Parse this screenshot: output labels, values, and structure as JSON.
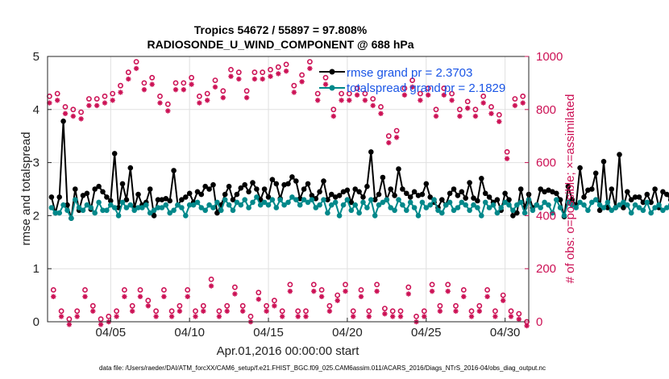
{
  "chart_data": {
    "type": "line",
    "title_line1": "Tropics 54672 / 55897 = 97.808%",
    "title_line2": "RADIOSONDE_U_WIND_COMPONENT @ 688 hPa",
    "xlabel": "Apr.01,2016 00:00:00 start",
    "ylabel_left": "rmse and totalspread",
    "ylabel_right": "# of obs: o=possible; ×=assimilated",
    "footer": "data file: /Users/raeder/DAI/ATM_forcXX/CAM6_setup/f.e21.FHIST_BGC.f09_025.CAM6assim.011/ACARS_2016/Diags_NTrS_2016-04/obs_diag_output.nc",
    "x_range_days": [
      1,
      31.5
    ],
    "xticks": [
      {
        "day": 5,
        "label": "04/05"
      },
      {
        "day": 10,
        "label": "04/10"
      },
      {
        "day": 15,
        "label": "04/15"
      },
      {
        "day": 20,
        "label": "04/20"
      },
      {
        "day": 25,
        "label": "04/25"
      },
      {
        "day": 30,
        "label": "04/30"
      }
    ],
    "ylim_left": [
      0,
      5
    ],
    "yticks_left": [
      "0",
      "1",
      "2",
      "3",
      "4",
      "5"
    ],
    "ylim_right": [
      0,
      1000
    ],
    "yticks_right": [
      "0",
      "200",
      "400",
      "600",
      "800",
      "1000"
    ],
    "x_start_day": 1.25,
    "x_step_days": 0.25,
    "series": [
      {
        "name": "rmse",
        "legend": "rmse grand pr = 2.3703",
        "color": "#000000",
        "axis": "left",
        "values": [
          2.35,
          2.05,
          2.35,
          3.78,
          2.2,
          1.95,
          2.5,
          2.1,
          2.38,
          2.42,
          2.12,
          2.5,
          2.55,
          2.45,
          2.35,
          2.28,
          3.17,
          2.15,
          2.6,
          2.3,
          2.9,
          2.15,
          2.4,
          2.2,
          2.25,
          2.5,
          2.0,
          2.3,
          2.3,
          2.32,
          2.28,
          2.85,
          2.2,
          2.3,
          2.35,
          2.42,
          2.25,
          2.45,
          2.4,
          2.55,
          2.5,
          2.58,
          2.05,
          2.2,
          2.4,
          2.55,
          2.3,
          2.4,
          2.52,
          2.58,
          2.45,
          2.62,
          2.5,
          2.3,
          2.5,
          2.35,
          2.68,
          2.6,
          2.32,
          2.58,
          2.6,
          2.73,
          2.65,
          2.32,
          2.5,
          2.6,
          2.38,
          2.32,
          2.45,
          2.65,
          2.3,
          2.4,
          2.35,
          2.38,
          2.45,
          2.48,
          2.25,
          2.5,
          2.45,
          2.35,
          2.55,
          3.2,
          2.3,
          2.4,
          2.72,
          2.3,
          2.5,
          2.38,
          2.88,
          2.5,
          2.42,
          2.35,
          2.45,
          2.38,
          2.4,
          2.6,
          2.35,
          2.25,
          2.15,
          2.3,
          2.2,
          2.42,
          2.5,
          2.38,
          2.45,
          2.33,
          2.62,
          2.33,
          2.28,
          2.7,
          2.42,
          2.35,
          2.25,
          2.3,
          2.1,
          2.42,
          2.3,
          2.0,
          2.05,
          2.5,
          2.15,
          2.4,
          2.15,
          2.2,
          2.5,
          2.45,
          2.48,
          2.45,
          2.42,
          2.3,
          1.98,
          2.55,
          2.3,
          2.2,
          2.9,
          2.35,
          2.48,
          2.5,
          2.8,
          2.1,
          3.02,
          2.15,
          2.5,
          2.15,
          3.15,
          2.15,
          2.45,
          2.3,
          2.35,
          2.35,
          2.25,
          2.4,
          2.25,
          2.5,
          2.15,
          2.45,
          2.4,
          2.3,
          2.45,
          2.4,
          3.05
        ]
      },
      {
        "name": "totalspread",
        "legend": "totalspread grand pr = 2.1829",
        "color": "#00888a",
        "axis": "left",
        "values": [
          2.15,
          2.05,
          2.05,
          2.2,
          2.1,
          1.95,
          2.3,
          2.15,
          2.1,
          2.2,
          2.15,
          2.05,
          2.25,
          2.1,
          2.1,
          2.2,
          2.15,
          2.0,
          2.25,
          2.15,
          2.2,
          2.1,
          2.15,
          2.15,
          2.2,
          2.05,
          2.1,
          2.15,
          2.15,
          2.2,
          2.05,
          2.1,
          2.2,
          2.15,
          2.0,
          2.2,
          2.2,
          2.25,
          2.15,
          2.1,
          2.2,
          2.15,
          2.25,
          2.1,
          2.3,
          2.2,
          2.1,
          2.25,
          2.2,
          2.3,
          2.15,
          2.25,
          2.35,
          2.2,
          2.25,
          2.2,
          2.3,
          2.15,
          2.3,
          2.2,
          2.25,
          2.35,
          2.3,
          2.2,
          2.3,
          2.25,
          2.3,
          2.15,
          2.2,
          2.3,
          2.05,
          2.2,
          2.25,
          2.0,
          2.2,
          2.3,
          2.1,
          2.2,
          2.05,
          2.25,
          2.15,
          2.3,
          2.0,
          2.2,
          2.25,
          2.3,
          2.15,
          2.1,
          2.3,
          2.2,
          2.1,
          2.25,
          2.15,
          2.0,
          2.25,
          2.15,
          2.2,
          2.3,
          2.1,
          2.05,
          2.2,
          2.25,
          2.1,
          2.15,
          2.25,
          2.2,
          2.1,
          2.2,
          2.15,
          2.0,
          2.25,
          2.15,
          2.2,
          2.05,
          2.15,
          2.25,
          2.2,
          2.1,
          2.2,
          2.25,
          2.05,
          2.3,
          2.1,
          2.2,
          2.15,
          2.25,
          2.2,
          2.05,
          2.3,
          2.15,
          2.0,
          2.25,
          2.2,
          2.15,
          2.25,
          2.2,
          2.1,
          2.25,
          2.3,
          2.2,
          2.15,
          2.25,
          2.1,
          2.15,
          2.2,
          2.25,
          2.2,
          2.05,
          2.2,
          2.15,
          2.1,
          2.25,
          2.05,
          2.15,
          2.2,
          2.1,
          2.15,
          2.2,
          2.1
        ]
      }
    ],
    "obs_counts": {
      "axis": "right",
      "color": "#cc1155",
      "times": [
        1.125,
        1.375,
        1.625,
        1.875,
        2.125,
        2.375,
        2.625,
        2.875,
        3.125,
        3.375,
        3.625,
        3.875,
        4.125,
        4.375,
        4.625,
        4.875,
        5.125,
        5.375,
        5.625,
        5.875,
        6.125,
        6.375,
        6.625,
        6.875,
        7.125,
        7.375,
        7.625,
        7.875,
        8.125,
        8.375,
        8.625,
        8.875,
        9.125,
        9.375,
        9.625,
        9.875,
        10.125,
        10.375,
        10.625,
        10.875,
        11.125,
        11.375,
        11.625,
        11.875,
        12.125,
        12.375,
        12.625,
        12.875,
        13.125,
        13.375,
        13.625,
        13.875,
        14.125,
        14.375,
        14.625,
        14.875,
        15.125,
        15.375,
        15.625,
        15.875,
        16.125,
        16.375,
        16.625,
        16.875,
        17.125,
        17.375,
        17.625,
        17.875,
        18.125,
        18.375,
        18.625,
        18.875,
        19.125,
        19.375,
        19.625,
        19.875,
        20.125,
        20.375,
        20.625,
        20.875,
        21.125,
        21.375,
        21.625,
        21.875,
        22.125,
        22.375,
        22.625,
        22.875,
        23.125,
        23.375,
        23.625,
        23.875,
        24.125,
        24.375,
        24.625,
        24.875,
        25.125,
        25.375,
        25.625,
        25.875,
        26.125,
        26.375,
        26.625,
        26.875,
        27.125,
        27.375,
        27.625,
        27.875,
        28.125,
        28.375,
        28.625,
        28.875,
        29.125,
        29.375,
        29.625,
        29.875,
        30.125,
        30.375,
        30.625,
        30.875,
        31.125,
        31.375
      ],
      "possible": [
        850,
        120,
        860,
        40,
        810,
        10,
        800,
        40,
        790,
        120,
        840,
        60,
        840,
        10,
        850,
        20,
        860,
        40,
        890,
        120,
        940,
        60,
        980,
        120,
        900,
        80,
        920,
        40,
        850,
        120,
        820,
        40,
        900,
        60,
        900,
        120,
        920,
        40,
        850,
        60,
        860,
        160,
        910,
        40,
        870,
        60,
        950,
        130,
        940,
        60,
        870,
        20,
        940,
        110,
        940,
        60,
        950,
        80,
        960,
        40,
        970,
        140,
        890,
        40,
        930,
        40,
        980,
        140,
        860,
        120,
        920,
        60,
        800,
        100,
        860,
        140,
        860,
        40,
        880,
        120,
        860,
        40,
        840,
        140,
        810,
        50,
        700,
        40,
        720,
        40,
        880,
        130,
        910,
        20,
        860,
        40,
        880,
        140,
        800,
        60,
        880,
        140,
        860,
        60,
        800,
        120,
        830,
        40,
        800,
        60,
        850,
        120,
        810,
        40,
        780,
        100,
        640,
        40,
        840,
        30,
        850,
        0
      ],
      "assimilated": [
        840,
        110,
        850,
        35,
        800,
        5,
        790,
        35,
        780,
        110,
        830,
        55,
        830,
        5,
        840,
        15,
        850,
        35,
        880,
        110,
        930,
        55,
        970,
        110,
        890,
        75,
        910,
        35,
        840,
        110,
        810,
        35,
        890,
        55,
        890,
        110,
        910,
        35,
        840,
        55,
        850,
        150,
        900,
        35,
        860,
        55,
        940,
        120,
        930,
        55,
        860,
        15,
        930,
        100,
        930,
        55,
        940,
        75,
        950,
        35,
        960,
        130,
        880,
        35,
        920,
        35,
        970,
        130,
        850,
        110,
        910,
        55,
        790,
        95,
        850,
        130,
        850,
        35,
        870,
        110,
        850,
        35,
        830,
        130,
        800,
        45,
        690,
        35,
        710,
        35,
        870,
        120,
        900,
        15,
        850,
        35,
        870,
        130,
        790,
        55,
        870,
        130,
        850,
        55,
        790,
        110,
        820,
        35,
        790,
        55,
        840,
        110,
        800,
        35,
        770,
        95,
        630,
        35,
        830,
        25,
        840,
        0
      ]
    }
  }
}
